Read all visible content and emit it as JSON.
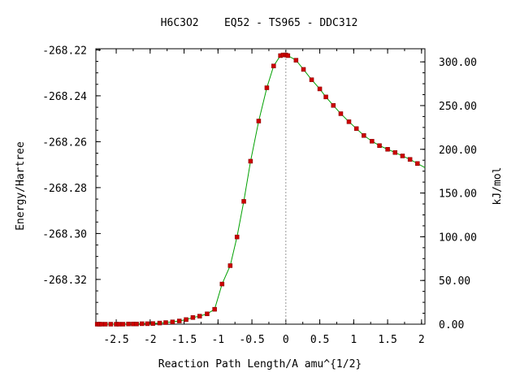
{
  "chart_data": {
    "type": "line",
    "title": "H6C3O2    EQ52 - TS965 - DDC312",
    "xlabel": "Reaction Path Length/A amu^{1/2}",
    "ylabel": "Energy/Hartree",
    "y2label": "kJ/mol",
    "xlim": [
      -2.8,
      2.05
    ],
    "ylim": [
      -268.3395,
      -268.2195
    ],
    "y2lim": [
      0,
      315
    ],
    "grid": false,
    "x_ticks": [
      -2.5,
      -2,
      -1.5,
      -1,
      -0.5,
      0,
      0.5,
      1,
      1.5,
      2
    ],
    "x_tick_labels": [
      "-2.5",
      "-2",
      "-1.5",
      "-1",
      "-0.5",
      "0",
      "0.5",
      "1",
      "1.5",
      "2"
    ],
    "y_ticks": [
      -268.22,
      -268.24,
      -268.26,
      -268.28,
      -268.3,
      -268.32
    ],
    "y_tick_labels": [
      "-268.22",
      "-268.24",
      "-268.26",
      "-268.28",
      "-268.30",
      "-268.32"
    ],
    "y2_ticks": [
      0,
      50,
      100,
      150,
      200,
      250,
      300
    ],
    "y2_tick_labels": [
      "0.00",
      "50.00",
      "100.00",
      "150.00",
      "200.00",
      "250.00",
      "300.00"
    ],
    "ts_marker_x": 0,
    "colors": {
      "line": "#00a000",
      "point": "#cc0000",
      "point_edge": "#800000",
      "ts_line": "#999999"
    },
    "series": [
      {
        "x": [
          -2.78,
          -2.75,
          -2.72,
          -2.66,
          -2.58,
          -2.5,
          -2.46,
          -2.4,
          -2.32,
          -2.25,
          -2.2,
          -2.12,
          -2.04,
          -1.96,
          -1.86,
          -1.77,
          -1.67,
          -1.57,
          -1.47,
          -1.37,
          -1.27,
          -1.16,
          -1.05,
          -0.94,
          -0.82,
          -0.72,
          -0.62,
          -0.52,
          -0.4,
          -0.28,
          -0.18,
          -0.08,
          -0.04,
          0.0,
          0.03,
          0.15,
          0.26,
          0.38,
          0.5,
          0.59,
          0.7,
          0.81,
          0.93,
          1.04,
          1.15,
          1.27,
          1.38,
          1.5,
          1.61,
          1.72,
          1.83,
          1.94
        ],
        "y": [
          -268.3395,
          -268.3395,
          -268.3395,
          -268.3395,
          -268.3395,
          -268.3395,
          -268.3395,
          -268.3395,
          -268.3394,
          -268.3394,
          -268.3394,
          -268.3393,
          -268.3393,
          -268.3392,
          -268.339,
          -268.3388,
          -268.3385,
          -268.3381,
          -268.3375,
          -268.3366,
          -268.336,
          -268.335,
          -268.333,
          -268.322,
          -268.314,
          -268.3015,
          -268.286,
          -268.2685,
          -268.251,
          -268.2365,
          -268.227,
          -268.2225,
          -268.2222,
          -268.2222,
          -268.2225,
          -268.2245,
          -268.2285,
          -268.233,
          -268.237,
          -268.2405,
          -268.2442,
          -268.2478,
          -268.2513,
          -268.2543,
          -268.2573,
          -268.2598,
          -268.2617,
          -268.2633,
          -268.2647,
          -268.2662,
          -268.2677,
          -268.2695
        ]
      }
    ]
  }
}
